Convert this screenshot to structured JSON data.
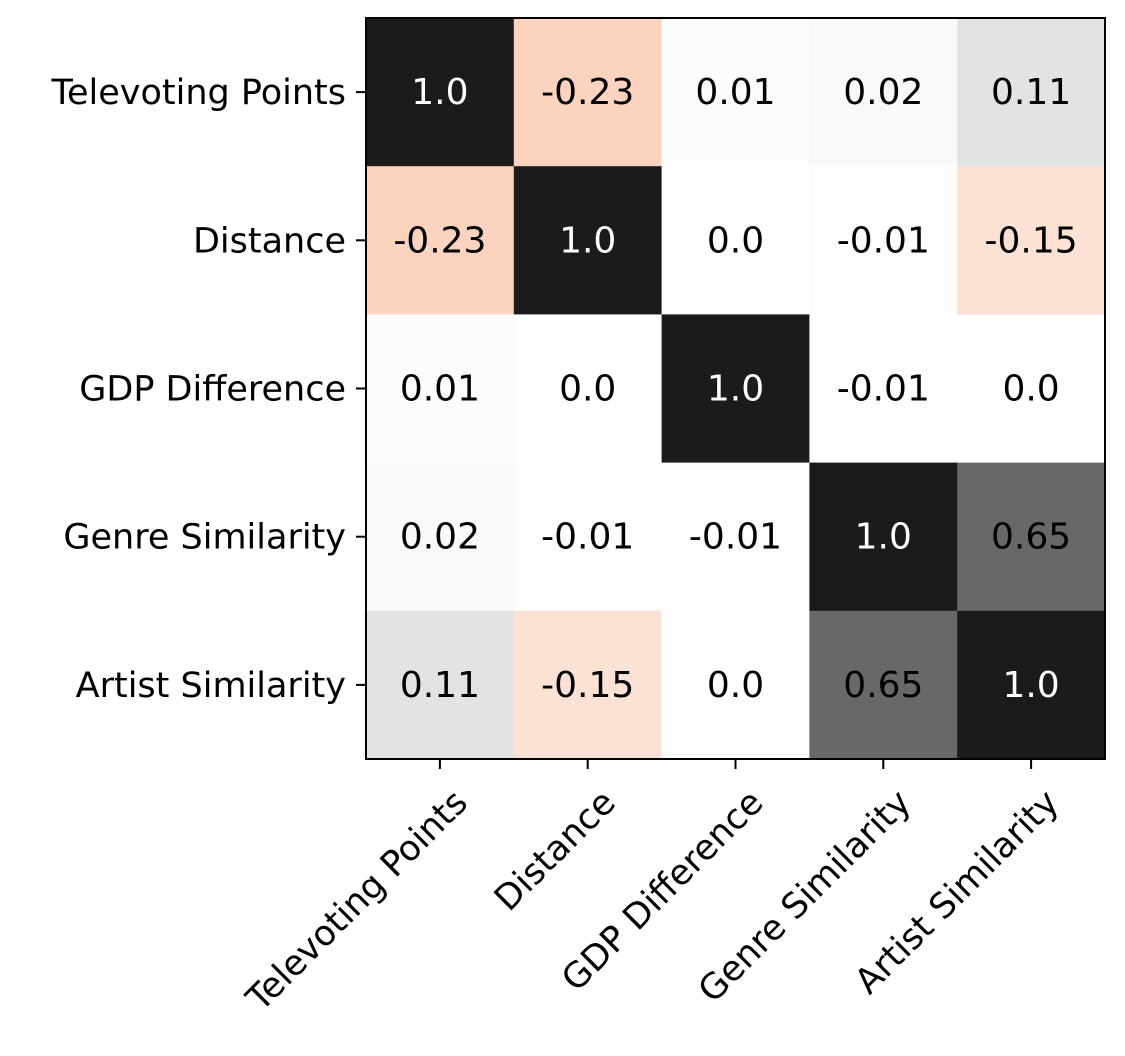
{
  "chart_data": {
    "type": "heatmap",
    "row_labels": [
      "Televoting Points",
      "Distance",
      "GDP Difference",
      "Genre Similarity",
      "Artist Similarity"
    ],
    "col_labels": [
      "Televoting Points",
      "Distance",
      "GDP Difference",
      "Genre Similarity",
      "Artist Similarity"
    ],
    "values": [
      [
        1.0,
        -0.23,
        0.01,
        0.02,
        0.11
      ],
      [
        -0.23,
        1.0,
        0.0,
        -0.01,
        -0.15
      ],
      [
        0.01,
        0.0,
        1.0,
        -0.01,
        0.0
      ],
      [
        0.02,
        -0.01,
        -0.01,
        1.0,
        0.65
      ],
      [
        0.11,
        -0.15,
        0.0,
        0.65,
        1.0
      ]
    ],
    "value_labels": [
      [
        "1.0",
        "-0.23",
        "0.01",
        "0.02",
        "0.11"
      ],
      [
        "-0.23",
        "1.0",
        "0.0",
        "-0.01",
        "-0.15"
      ],
      [
        "0.01",
        "0.0",
        "1.0",
        "-0.01",
        "0.0"
      ],
      [
        "0.02",
        "-0.01",
        "-0.01",
        "1.0",
        "0.65"
      ],
      [
        "0.11",
        "-0.15",
        "0.0",
        "0.65",
        "1.0"
      ]
    ],
    "colormap": {
      "positive_max": "#1b1b1b",
      "negative_max": "#fbd3be",
      "zero": "#ffffff",
      "text_dark": "#000000",
      "text_light": "#ffffff"
    },
    "title": "",
    "xlabel": "",
    "ylabel": "",
    "x_tick_rotation": 45,
    "legend": "none"
  }
}
